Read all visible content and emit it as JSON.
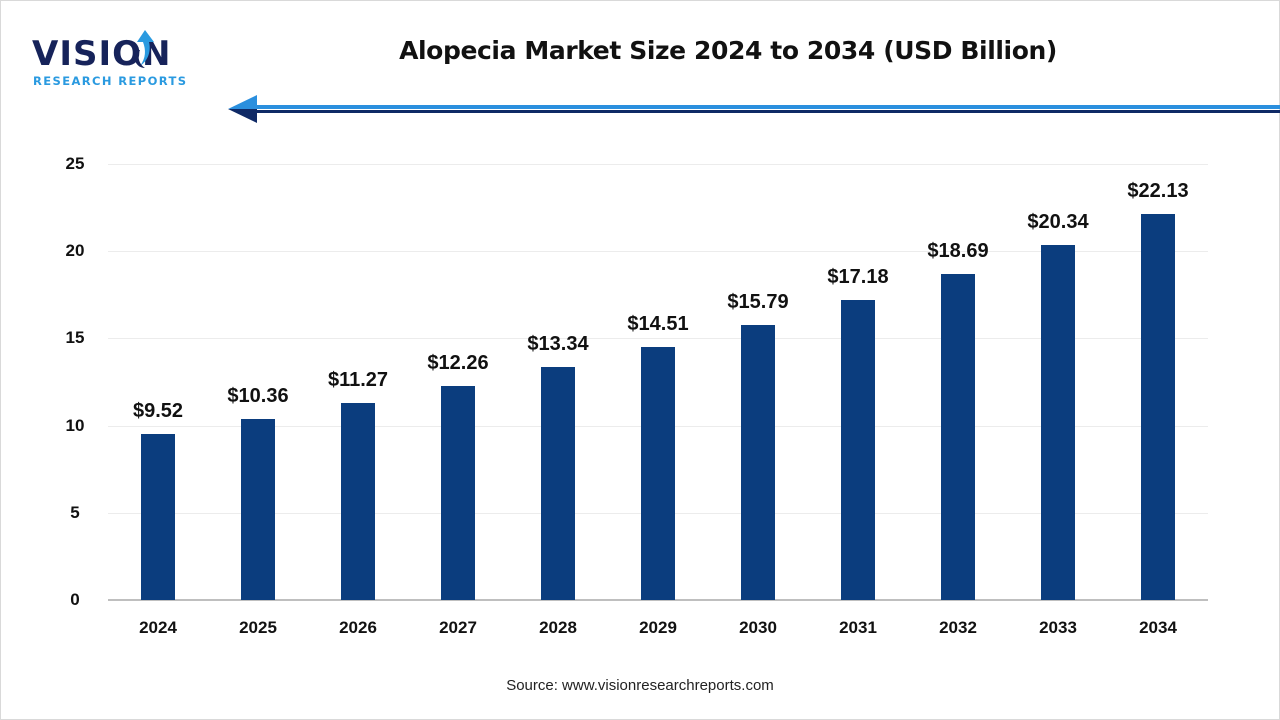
{
  "header": {
    "logo_word": "VISION",
    "logo_sub": "RESEARCH REPORTS",
    "title": "Alopecia Market Size 2024 to 2034 (USD Billion)"
  },
  "colors": {
    "bar": "#0b3d7e",
    "logo_dark": "#16235a",
    "logo_light": "#2a9ae0",
    "arrow_light": "#2a8fde",
    "arrow_dark": "#0f2a66"
  },
  "chart_data": {
    "type": "bar",
    "title": "Alopecia Market Size 2024 to 2034 (USD Billion)",
    "xlabel": "",
    "ylabel": "",
    "categories": [
      "2024",
      "2025",
      "2026",
      "2027",
      "2028",
      "2029",
      "2030",
      "2031",
      "2032",
      "2033",
      "2034"
    ],
    "values": [
      9.52,
      10.36,
      11.27,
      12.26,
      13.34,
      14.51,
      15.79,
      17.18,
      18.69,
      20.34,
      22.13
    ],
    "value_labels": [
      "$9.52",
      "$10.36",
      "$11.27",
      "$12.26",
      "$13.34",
      "$14.51",
      "$15.79",
      "$17.18",
      "$18.69",
      "$20.34",
      "$22.13"
    ],
    "yticks": [
      "0",
      "5",
      "10",
      "15",
      "20",
      "25"
    ],
    "ylim": [
      0,
      25
    ],
    "grid": true,
    "legend": null
  },
  "footer": {
    "source": "Source: www.visionresearchreports.com"
  }
}
